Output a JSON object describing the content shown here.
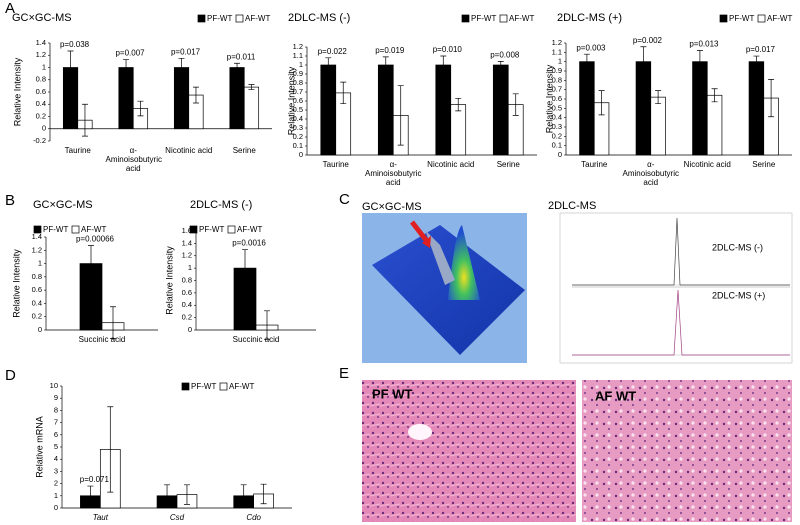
{
  "panel_labels": [
    "A",
    "B",
    "C",
    "D",
    "E"
  ],
  "chart_data": [
    {
      "type": "bar",
      "title": "GC×GC-MS",
      "y_label": "Relative Intensity",
      "categories": [
        "Taurine",
        "α-Aminoisobutyric acid",
        "Nicotinic acid",
        "Serine"
      ],
      "series": [
        {
          "name": "PF-WT",
          "color": "#000000",
          "values": [
            1,
            1,
            1,
            1
          ],
          "errors": [
            0.27,
            0.13,
            0.15,
            0.07
          ]
        },
        {
          "name": "AF-WT",
          "color": "#ffffff",
          "values": [
            0.14,
            0.33,
            0.55,
            0.68
          ],
          "errors": [
            0.26,
            0.12,
            0.13,
            0.04
          ]
        }
      ],
      "annotations": [
        "p=0.038",
        "p=0.007",
        "p=0.017",
        "p=0.011"
      ],
      "ylim": [
        -0.2,
        1.4
      ],
      "yticks": [
        -0.2,
        0,
        0.2,
        0.4,
        0.6,
        0.8,
        1,
        1.2,
        1.4
      ]
    },
    {
      "type": "bar",
      "title": "2DLC-MS (-)",
      "y_label": "Relative Intensity",
      "categories": [
        "Taurine",
        "α-Aminoisobutyric acid",
        "Nicotinic acid",
        "Serine"
      ],
      "series": [
        {
          "name": "PF-WT",
          "color": "#000000",
          "values": [
            1,
            1,
            1,
            1
          ],
          "errors": [
            0.08,
            0.09,
            0.1,
            0.04
          ]
        },
        {
          "name": "AF-WT",
          "color": "#ffffff",
          "values": [
            0.69,
            0.44,
            0.56,
            0.56
          ],
          "errors": [
            0.12,
            0.33,
            0.07,
            0.12
          ]
        }
      ],
      "annotations": [
        "p=0.022",
        "p=0.019",
        "p=0.010",
        "p=0.008"
      ],
      "ylim": [
        0,
        1.2
      ],
      "yticks": [
        0,
        0.1,
        0.2,
        0.3,
        0.4,
        0.5,
        0.6,
        0.7,
        0.8,
        0.9,
        1,
        1.1,
        1.2
      ]
    },
    {
      "type": "bar",
      "title": "2DLC-MS (+)",
      "y_label": "Relative Intensity",
      "categories": [
        "Taurine",
        "α-Aminoisobutyric acid",
        "Nicotinic acid",
        "Serine"
      ],
      "series": [
        {
          "name": "PF-WT",
          "color": "#000000",
          "values": [
            1,
            1,
            1,
            1
          ],
          "errors": [
            0.08,
            0.16,
            0.12,
            0.06
          ]
        },
        {
          "name": "AF-WT",
          "color": "#ffffff",
          "values": [
            0.56,
            0.62,
            0.64,
            0.61
          ],
          "errors": [
            0.13,
            0.07,
            0.07,
            0.2
          ]
        }
      ],
      "annotations": [
        "p=0.003",
        "p=0.002",
        "p=0.013",
        "p=0.017"
      ],
      "ylim": [
        0,
        1.2
      ],
      "yticks": [
        0,
        0.1,
        0.2,
        0.3,
        0.4,
        0.5,
        0.6,
        0.7,
        0.8,
        0.9,
        1,
        1.1,
        1.2
      ]
    },
    {
      "type": "bar",
      "title": "GC×GC-MS",
      "y_label": "Relative Intensity",
      "categories": [
        "Succinic acid"
      ],
      "series": [
        {
          "name": "PF-WT",
          "color": "#000000",
          "values": [
            1
          ],
          "errors": [
            0.27
          ]
        },
        {
          "name": "AF-WT",
          "color": "#ffffff",
          "values": [
            0.11
          ],
          "errors": [
            0.24
          ]
        }
      ],
      "annotations": [
        "p=0.00066"
      ],
      "ylim": [
        0,
        1.4
      ],
      "yticks": [
        0,
        0.2,
        0.4,
        0.6,
        0.8,
        1,
        1.2,
        1.4
      ]
    },
    {
      "type": "bar",
      "title": "2DLC-MS (-)",
      "y_label": "Relative Intensity",
      "categories": [
        "Succinic acid"
      ],
      "series": [
        {
          "name": "PF-WT",
          "color": "#000000",
          "values": [
            1
          ],
          "errors": [
            0.3
          ]
        },
        {
          "name": "AF-WT",
          "color": "#ffffff",
          "values": [
            0.08
          ],
          "errors": [
            0.23
          ]
        }
      ],
      "annotations": [
        "p=0.0016"
      ],
      "ylim": [
        0,
        1.6
      ],
      "yticks": [
        0,
        0.2,
        0.4,
        0.6,
        0.8,
        1,
        1.2,
        1.4,
        1.6
      ]
    },
    {
      "type": "bar",
      "y_label": "Relative mRNA",
      "italic_categories": true,
      "categories": [
        "Taut",
        "Csd",
        "Cdo"
      ],
      "series": [
        {
          "name": "PF-WT",
          "color": "#000000",
          "values": [
            1,
            1,
            1
          ],
          "errors": [
            0.8,
            0.9,
            0.9
          ]
        },
        {
          "name": "AF-WT",
          "color": "#ffffff",
          "values": [
            4.8,
            1.1,
            1.15
          ],
          "errors": [
            3.5,
            0.8,
            0.8
          ]
        }
      ],
      "annotations": [
        "p=0.071",
        null,
        null
      ],
      "ylim": [
        0,
        10
      ],
      "yticks": [
        0,
        1,
        2,
        3,
        4,
        5,
        6,
        7,
        8,
        9,
        10
      ]
    }
  ],
  "panel_c": {
    "titles": [
      "GC×GC-MS",
      "2DLC-MS"
    ],
    "traces": [
      "2DLC-MS (-)",
      "2DLC-MS (+)"
    ]
  },
  "panel_e": {
    "labels": [
      "PF WT",
      "AF WT"
    ]
  }
}
